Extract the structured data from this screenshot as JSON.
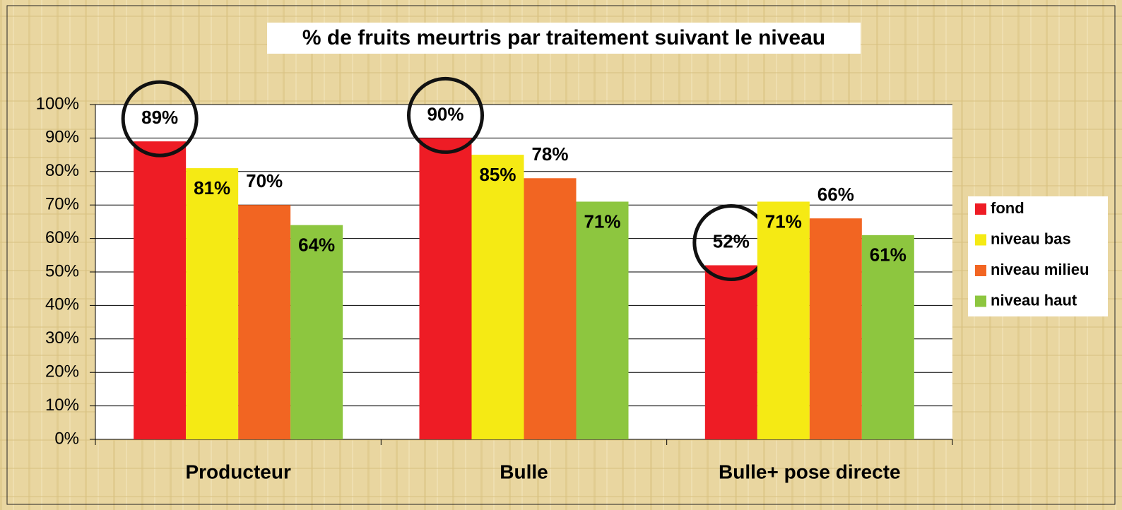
{
  "chart_data": {
    "type": "bar",
    "title": "% de fruits meurtris par traitement suivant le niveau",
    "categories": [
      "Producteur",
      "Bulle",
      "Bulle+ pose directe"
    ],
    "series": [
      {
        "name": "fond",
        "color": "#ee1c25",
        "values": [
          89,
          90,
          52
        ],
        "value_labels": [
          "89%",
          "90%",
          "52%"
        ]
      },
      {
        "name": "niveau bas",
        "color": "#f5ea14",
        "values": [
          81,
          85,
          71
        ],
        "value_labels": [
          "81%",
          "85%",
          "71%"
        ]
      },
      {
        "name": "niveau milieu",
        "color": "#f26522",
        "values": [
          70,
          78,
          66
        ],
        "value_labels": [
          "70%",
          "78%",
          "66%"
        ]
      },
      {
        "name": "niveau haut",
        "color": "#8dc63f",
        "values": [
          64,
          71,
          61
        ],
        "value_labels": [
          "64%",
          "71%",
          "61%"
        ]
      }
    ],
    "ylim": [
      0,
      100
    ],
    "yticks": [
      {
        "value": 0,
        "label": "0%"
      },
      {
        "value": 10,
        "label": "10%"
      },
      {
        "value": 20,
        "label": "20%"
      },
      {
        "value": 30,
        "label": "30%"
      },
      {
        "value": 40,
        "label": "40%"
      },
      {
        "value": 50,
        "label": "50%"
      },
      {
        "value": 60,
        "label": "60%"
      },
      {
        "value": 70,
        "label": "70%"
      },
      {
        "value": 80,
        "label": "80%"
      },
      {
        "value": 90,
        "label": "90%"
      },
      {
        "value": 100,
        "label": "100%"
      }
    ],
    "grid": true,
    "legend": "right"
  }
}
